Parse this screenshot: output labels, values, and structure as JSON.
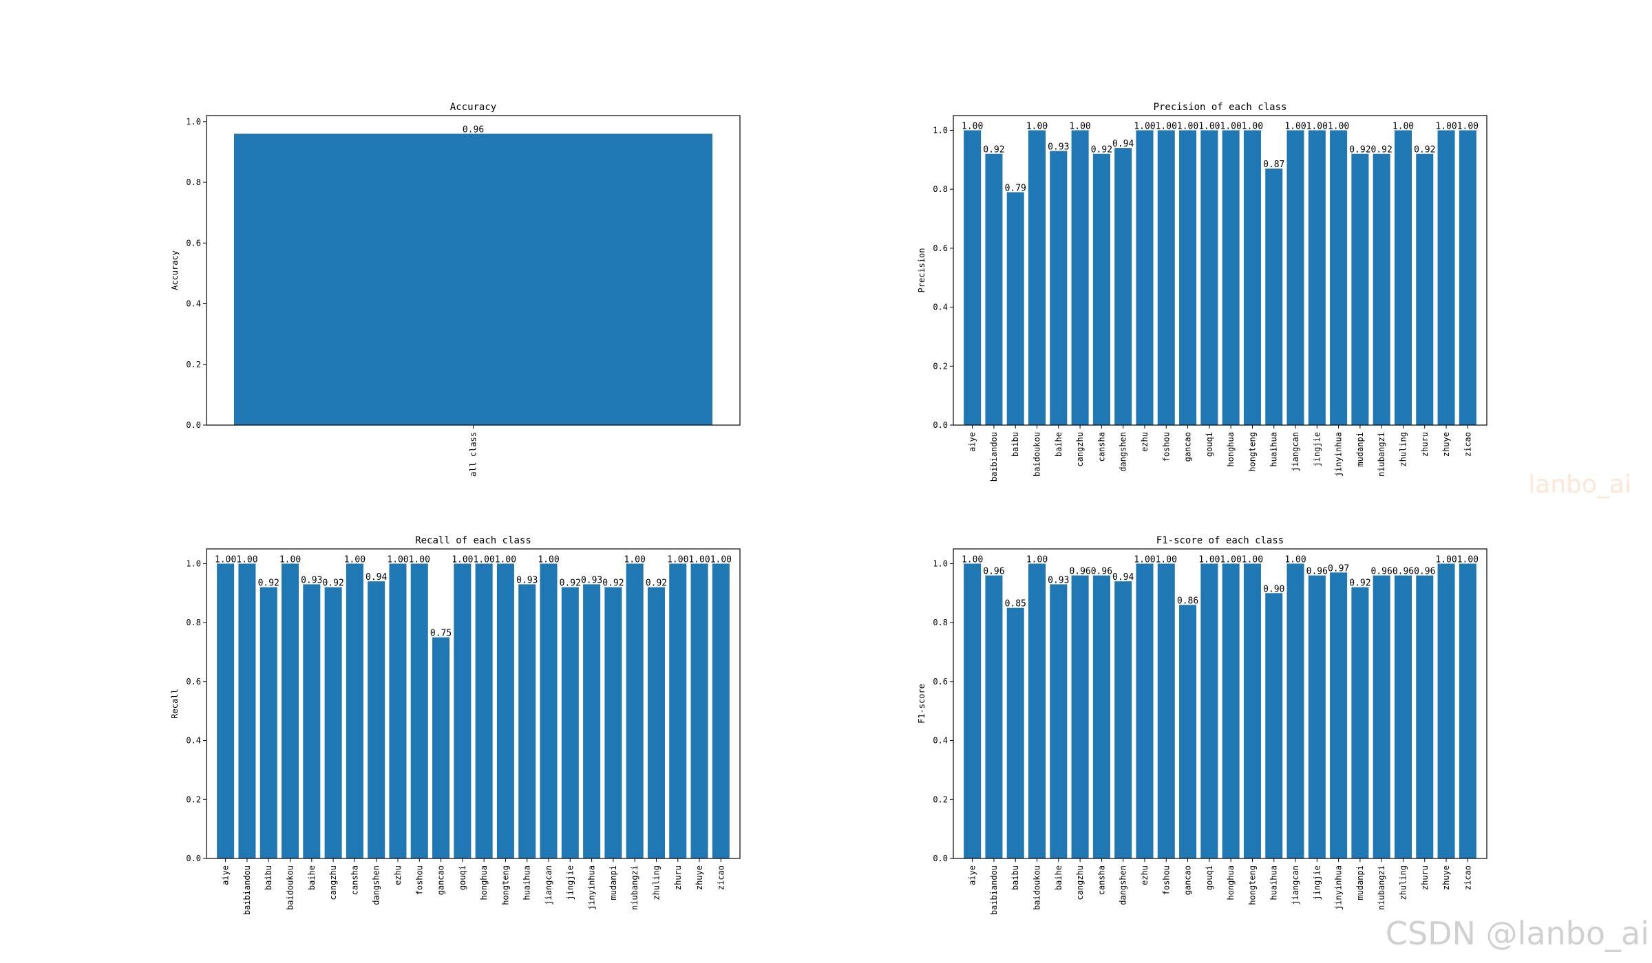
{
  "watermark": {
    "middle_right": "lanbo_ai",
    "bottom_right": "CSDN @lanbo_ai"
  },
  "chart_data": [
    {
      "type": "bar",
      "title": "Accuracy",
      "xlabel": "",
      "ylabel": "Accuracy",
      "categories": [
        "all class"
      ],
      "values": [
        0.96
      ],
      "value_labels": [
        "0.96"
      ],
      "ylim": [
        0,
        1.02
      ],
      "yticks": [
        0.0,
        0.2,
        0.4,
        0.6,
        0.8,
        1.0
      ],
      "color": "#1f77b4",
      "grid": false,
      "legend": "none"
    },
    {
      "type": "bar",
      "title": "Precision of each class",
      "xlabel": "",
      "ylabel": "Precision",
      "categories": [
        "aiye",
        "baibiandou",
        "baibu",
        "baidoukou",
        "baihe",
        "cangzhu",
        "cansha",
        "dangshen",
        "ezhu",
        "foshou",
        "gancao",
        "gouqi",
        "honghua",
        "hongteng",
        "huaihua",
        "jiangcan",
        "jingjie",
        "jinyinhua",
        "mudanpi",
        "niubangzi",
        "zhuling",
        "zhuru",
        "zhuye",
        "zicao"
      ],
      "values": [
        1.0,
        0.92,
        0.79,
        1.0,
        0.93,
        1.0,
        0.92,
        0.94,
        1.0,
        1.0,
        1.0,
        1.0,
        1.0,
        1.0,
        0.87,
        1.0,
        1.0,
        1.0,
        0.92,
        0.92,
        1.0,
        0.92,
        1.0,
        1.0
      ],
      "value_labels": [
        "1.00",
        "0.92",
        "0.79",
        "1.00",
        "0.93",
        "1.00",
        "0.92",
        "0.94",
        "1.00",
        "1.00",
        "1.00",
        "1.00",
        "1.00",
        "1.00",
        "0.87",
        "1.00",
        "1.00",
        "1.00",
        "0.92",
        "0.92",
        "1.00",
        "0.92",
        "1.00",
        "1.00"
      ],
      "ylim": [
        0,
        1.05
      ],
      "yticks": [
        0.0,
        0.2,
        0.4,
        0.6,
        0.8,
        1.0
      ],
      "color": "#1f77b4",
      "grid": false,
      "legend": "none"
    },
    {
      "type": "bar",
      "title": "Recall of each class",
      "xlabel": "",
      "ylabel": "Recall",
      "categories": [
        "aiye",
        "baibiandou",
        "baibu",
        "baidoukou",
        "baihe",
        "cangzhu",
        "cansha",
        "dangshen",
        "ezhu",
        "foshou",
        "gancao",
        "gouqi",
        "honghua",
        "hongteng",
        "huaihua",
        "jiangcan",
        "jingjie",
        "jinyinhua",
        "mudanpi",
        "niubangzi",
        "zhuling",
        "zhuru",
        "zhuye",
        "zicao"
      ],
      "values": [
        1.0,
        1.0,
        0.92,
        1.0,
        0.93,
        0.92,
        1.0,
        0.94,
        1.0,
        1.0,
        0.75,
        1.0,
        1.0,
        1.0,
        0.93,
        1.0,
        0.92,
        0.93,
        0.92,
        1.0,
        0.92,
        1.0,
        1.0,
        1.0
      ],
      "value_labels": [
        "1.00",
        "1.00",
        "0.92",
        "1.00",
        "0.93",
        "0.92",
        "1.00",
        "0.94",
        "1.00",
        "1.00",
        "0.75",
        "1.00",
        "1.00",
        "1.00",
        "0.93",
        "1.00",
        "0.92",
        "0.93",
        "0.92",
        "1.00",
        "0.92",
        "1.00",
        "1.00",
        "1.00"
      ],
      "ylim": [
        0,
        1.05
      ],
      "yticks": [
        0.0,
        0.2,
        0.4,
        0.6,
        0.8,
        1.0
      ],
      "color": "#1f77b4",
      "grid": false,
      "legend": "none"
    },
    {
      "type": "bar",
      "title": "F1-score of each class",
      "xlabel": "",
      "ylabel": "F1-score",
      "categories": [
        "aiye",
        "baibiandou",
        "baibu",
        "baidoukou",
        "baihe",
        "cangzhu",
        "cansha",
        "dangshen",
        "ezhu",
        "foshou",
        "gancao",
        "gouqi",
        "honghua",
        "hongteng",
        "huaihua",
        "jiangcan",
        "jingjie",
        "jinyinhua",
        "mudanpi",
        "niubangzi",
        "zhuling",
        "zhuru",
        "zhuye",
        "zicao"
      ],
      "values": [
        1.0,
        0.96,
        0.85,
        1.0,
        0.93,
        0.96,
        0.96,
        0.94,
        1.0,
        1.0,
        0.86,
        1.0,
        1.0,
        1.0,
        0.9,
        1.0,
        0.96,
        0.97,
        0.92,
        0.96,
        0.96,
        0.96,
        1.0,
        1.0
      ],
      "value_labels": [
        "1.00",
        "0.96",
        "0.85",
        "1.00",
        "0.93",
        "0.96",
        "0.96",
        "0.94",
        "1.00",
        "1.00",
        "0.86",
        "1.00",
        "1.00",
        "1.00",
        "0.90",
        "1.00",
        "0.96",
        "0.97",
        "0.92",
        "0.96",
        "0.96",
        "0.96",
        "1.00",
        "1.00"
      ],
      "ylim": [
        0,
        1.05
      ],
      "yticks": [
        0.0,
        0.2,
        0.4,
        0.6,
        0.8,
        1.0
      ],
      "color": "#1f77b4",
      "grid": false,
      "legend": "none"
    }
  ]
}
